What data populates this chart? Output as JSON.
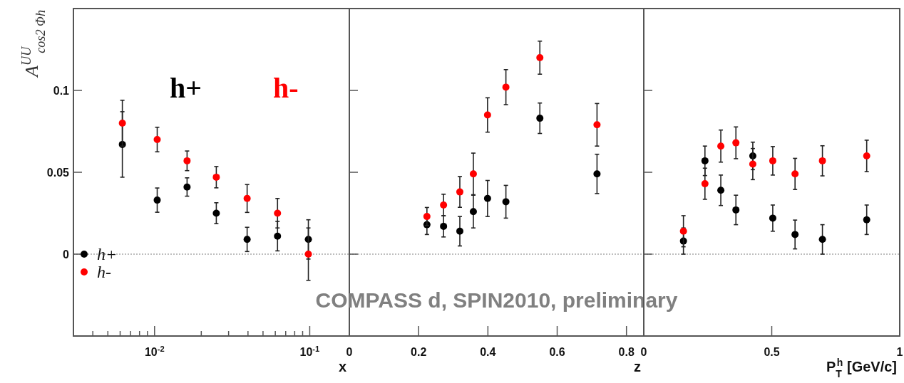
{
  "chart_data": [
    {
      "type": "scatter",
      "ylabel": "A$^{UU}$$_{cos2 Φh}$",
      "xlabel": "x",
      "log": "x",
      "xlim": [
        0.003,
        0.18
      ],
      "ylim": [
        -0.05,
        0.15
      ],
      "xticks": [
        {
          "value": 0.004,
          "label": null
        },
        {
          "value": 0.005,
          "label": null
        },
        {
          "value": 0.006,
          "label": null
        },
        {
          "value": 0.007,
          "label": null
        },
        {
          "value": 0.008,
          "label": null
        },
        {
          "value": 0.009,
          "label": null
        },
        {
          "value": 0.01,
          "label": "10$^{-2}$"
        },
        {
          "value": 0.02,
          "label": null
        },
        {
          "value": 0.03,
          "label": null
        },
        {
          "value": 0.04,
          "label": null
        },
        {
          "value": 0.05,
          "label": null
        },
        {
          "value": 0.06,
          "label": null
        },
        {
          "value": 0.07,
          "label": null
        },
        {
          "value": 0.08,
          "label": null
        },
        {
          "value": 0.09,
          "label": null
        },
        {
          "value": 0.1,
          "label": "10$^{-1}$"
        }
      ],
      "yticks": [
        {
          "value": -0.05,
          "label": null
        },
        0,
        0.05,
        0.1,
        {
          "value": 0.15,
          "label": null
        }
      ],
      "marker": "circle",
      "grid": false,
      "legend": "bottom left",
      "annotations": [
        "h+",
        "h-"
      ],
      "ref_lines": [
        {
          "axis": "y",
          "value": 0,
          "line_style": "dotted",
          "color": "#aaaaaa"
        }
      ],
      "series": [
        {
          "name": "h+",
          "color": "#000000",
          "x": [
            0.0062,
            0.0104,
            0.0162,
            0.025,
            0.0395,
            0.062,
            0.098
          ],
          "values": [
            0.067,
            0.033,
            0.041,
            0.025,
            0.009,
            0.011,
            0.009
          ],
          "errors": [
            0.02,
            0.0074,
            0.0056,
            0.0064,
            0.0074,
            0.009,
            0.012
          ]
        },
        {
          "name": "h-",
          "color": "#ff0000",
          "x": [
            0.0062,
            0.0104,
            0.0162,
            0.025,
            0.0395,
            0.062,
            0.098
          ],
          "values": [
            0.08,
            0.07,
            0.057,
            0.047,
            0.034,
            0.025,
            0
          ],
          "errors": [
            0.014,
            0.0075,
            0.006,
            0.0065,
            0.0085,
            0.009,
            0.016
          ]
        }
      ]
    },
    {
      "type": "scatter",
      "xlabel": "z",
      "xlim": [
        0,
        0.85
      ],
      "ylim": [
        -0.05,
        0.15
      ],
      "xticks": [
        0,
        0.2,
        0.4,
        0.6,
        0.8
      ],
      "yticks": [
        {
          "value": 0,
          "label": null
        },
        {
          "value": 0.05,
          "label": null
        },
        {
          "value": 0.1,
          "label": null
        }
      ],
      "tick_labels": "x",
      "marker": "circle",
      "grid": false,
      "annotations": [
        "COMPASS d, SPIN2010, preliminary"
      ],
      "ref_lines": [
        {
          "axis": "y",
          "value": 0,
          "line_style": "dotted",
          "color": "#aaaaaa"
        }
      ],
      "series": [
        {
          "color": "#000000",
          "x": [
            0.224,
            0.272,
            0.319,
            0.358,
            0.399,
            0.452,
            0.55,
            0.715
          ],
          "values": [
            0.018,
            0.017,
            0.014,
            0.026,
            0.034,
            0.032,
            0.083,
            0.049
          ],
          "errors": [
            0.006,
            0.0065,
            0.009,
            0.01,
            0.011,
            0.01,
            0.0093,
            0.012
          ]
        },
        {
          "color": "#ff0000",
          "x": [
            0.224,
            0.272,
            0.319,
            0.358,
            0.399,
            0.452,
            0.55,
            0.715
          ],
          "values": [
            0.023,
            0.03,
            0.038,
            0.049,
            0.085,
            0.102,
            0.12,
            0.079
          ],
          "errors": [
            0.0055,
            0.0066,
            0.0094,
            0.0127,
            0.0105,
            0.0107,
            0.0101,
            0.013
          ]
        }
      ]
    },
    {
      "type": "scatter",
      "xlabel": "P$_{T}$$^{h}$ [GeV/c]",
      "xlim": [
        0,
        1
      ],
      "ylim": [
        -0.05,
        0.15
      ],
      "xticks": [
        0,
        0.5,
        1
      ],
      "yticks": [
        {
          "value": 0,
          "label": null
        },
        {
          "value": 0.05,
          "label": null
        },
        {
          "value": 0.1,
          "label": null
        }
      ],
      "tick_labels": "x",
      "marker": "circle",
      "grid": false,
      "ref_lines": [
        {
          "axis": "y",
          "value": 0,
          "line_style": "dotted",
          "color": "#aaaaaa"
        }
      ],
      "series": [
        {
          "color": "#000000",
          "x": [
            0.155,
            0.239,
            0.301,
            0.36,
            0.426,
            0.504,
            0.591,
            0.698,
            0.871
          ],
          "values": [
            0.008,
            0.057,
            0.039,
            0.027,
            0.06,
            0.022,
            0.012,
            0.009,
            0.021
          ],
          "errors": [
            0.008,
            0.009,
            0.0093,
            0.009,
            0.0084,
            0.008,
            0.0088,
            0.009,
            0.009
          ]
        },
        {
          "color": "#ff0000",
          "x": [
            0.155,
            0.239,
            0.301,
            0.36,
            0.426,
            0.504,
            0.591,
            0.698,
            0.871
          ],
          "values": [
            0.014,
            0.043,
            0.066,
            0.068,
            0.055,
            0.057,
            0.049,
            0.057,
            0.06
          ],
          "errors": [
            0.0095,
            0.0095,
            0.0098,
            0.0097,
            0.0095,
            0.0087,
            0.0095,
            0.0092,
            0.0096
          ]
        }
      ]
    }
  ]
}
